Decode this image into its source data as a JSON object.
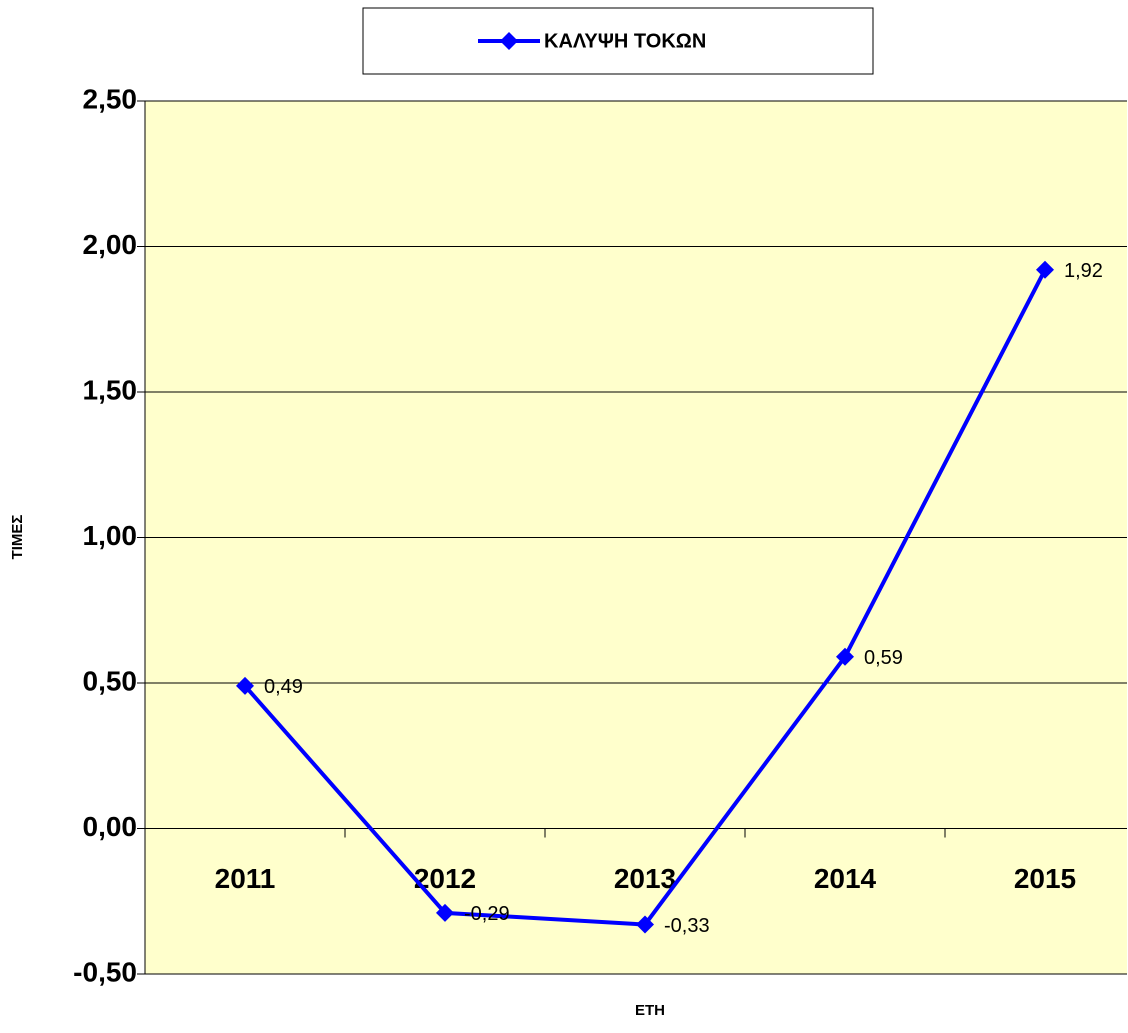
{
  "chart_data": {
    "type": "line",
    "x_label": "ΕΤΗ",
    "y_label": "ΤΙΜΕΣ",
    "categories": [
      "2011",
      "2012",
      "2013",
      "2014",
      "2015"
    ],
    "series": [
      {
        "name": "ΚΑΛΥΨΗ ΤΟΚΩΝ",
        "color": "#0000ff",
        "values": [
          0.49,
          -0.29,
          -0.33,
          0.59,
          1.92
        ],
        "value_labels": [
          "0,49",
          "-0,29",
          "-0,33",
          "0,59",
          "1,92"
        ]
      }
    ],
    "ylim": [
      -0.5,
      2.5
    ],
    "yticks": [
      {
        "value": -0.5,
        "label": "-0,50"
      },
      {
        "value": 0,
        "label": "0,00"
      },
      {
        "value": 0.5,
        "label": "0,50"
      },
      {
        "value": 1,
        "label": "1,00"
      },
      {
        "value": 1.5,
        "label": "1,50"
      },
      {
        "value": 2,
        "label": "2,00"
      },
      {
        "value": 2.5,
        "label": "2,50"
      }
    ],
    "grid": true,
    "legend": "top",
    "plot_background": "#ffffcc"
  }
}
